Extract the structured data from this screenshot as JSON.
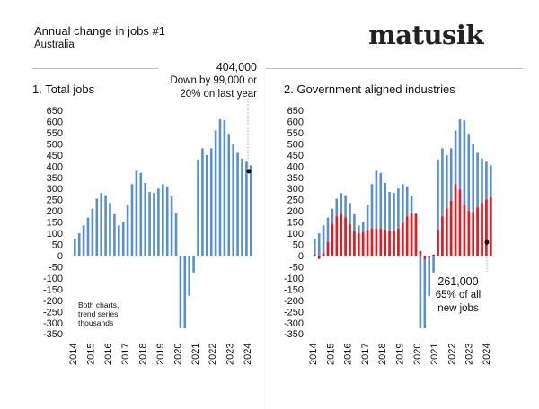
{
  "header": {
    "title": "Annual change in jobs #1",
    "subtitle": "Australia",
    "brand": "matusik"
  },
  "annotations": {
    "total": {
      "value": "404,000",
      "line1": "Down by 99,000 or",
      "line2": "20% on last year"
    },
    "government": {
      "value": "261,000",
      "line1": "65% of all",
      "line2": "new jobs"
    }
  },
  "note": {
    "line1": "Both charts,",
    "line2": "trend series,",
    "line3": "thousands"
  },
  "colors": {
    "blue": "#5b8fc7",
    "red": "#e41a1c",
    "marker": "#000000"
  },
  "chart_data": [
    {
      "type": "bar",
      "title": "1. Total jobs",
      "ylabel": "",
      "xlabel": "",
      "ylim": [
        -350,
        650
      ],
      "yticks": [
        650,
        600,
        550,
        500,
        450,
        400,
        350,
        300,
        250,
        200,
        150,
        100,
        50,
        0,
        -50,
        -100,
        -150,
        -200,
        -250,
        -300,
        -350
      ],
      "xtick_labels": [
        "2014",
        "2015",
        "2016",
        "2017",
        "2018",
        "2019",
        "2020",
        "2021",
        "2022",
        "2023",
        "2024"
      ],
      "series": [
        {
          "name": "Total jobs",
          "color": "#5b8fc7",
          "values": [
            75,
            100,
            135,
            170,
            210,
            255,
            280,
            270,
            235,
            185,
            135,
            150,
            225,
            320,
            380,
            370,
            325,
            285,
            280,
            300,
            320,
            310,
            265,
            190,
            -325,
            -325,
            -180,
            -75,
            430,
            480,
            450,
            480,
            560,
            610,
            605,
            545,
            500,
            460,
            435,
            420,
            404
          ]
        }
      ],
      "marker": {
        "index": 40,
        "value": 378
      }
    },
    {
      "type": "bar",
      "title": "2. Government aligned industries",
      "ylabel": "",
      "xlabel": "",
      "ylim": [
        -350,
        650
      ],
      "yticks": [
        650,
        600,
        550,
        500,
        450,
        400,
        350,
        300,
        250,
        200,
        150,
        100,
        50,
        0,
        -50,
        -100,
        -150,
        -200,
        -250,
        -300,
        -350
      ],
      "xtick_labels": [
        "2014",
        "2015",
        "2016",
        "2017",
        "2018",
        "2019",
        "2020",
        "2021",
        "2022",
        "2023",
        "2024"
      ],
      "series": [
        {
          "name": "Total jobs",
          "color": "#5b8fc7",
          "values": [
            75,
            100,
            135,
            170,
            210,
            255,
            280,
            270,
            235,
            185,
            135,
            150,
            225,
            320,
            380,
            370,
            325,
            285,
            280,
            300,
            320,
            310,
            265,
            190,
            -325,
            -325,
            -180,
            -75,
            430,
            480,
            450,
            480,
            560,
            610,
            605,
            545,
            500,
            460,
            435,
            420,
            404
          ]
        },
        {
          "name": "Government aligned industries",
          "color": "#e41a1c",
          "values": [
            5,
            -15,
            10,
            60,
            140,
            175,
            185,
            170,
            140,
            110,
            100,
            105,
            115,
            120,
            120,
            120,
            115,
            110,
            110,
            120,
            145,
            175,
            190,
            185,
            20,
            -15,
            -5,
            5,
            115,
            175,
            210,
            245,
            320,
            295,
            225,
            200,
            195,
            215,
            235,
            250,
            261
          ]
        }
      ],
      "marker": {
        "index": 40,
        "value": 60
      }
    }
  ]
}
